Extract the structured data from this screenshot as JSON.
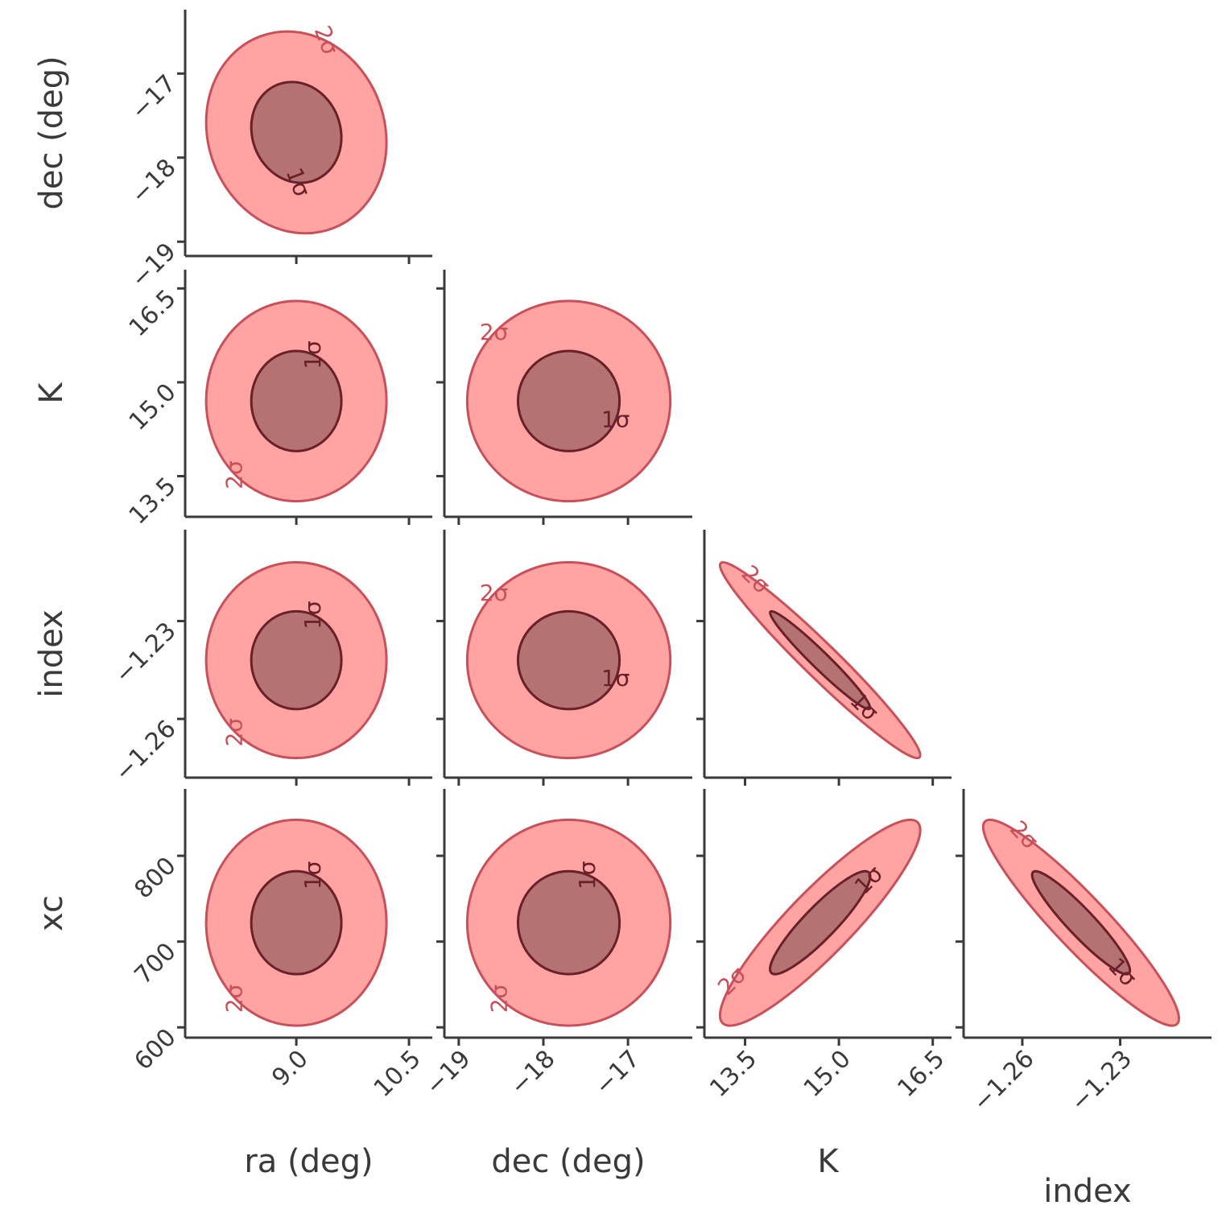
{
  "chart_data": {
    "type": "corner",
    "parameters": [
      {
        "label": "ra (deg)",
        "lim": [
          7.52,
          10.81
        ],
        "ticks": [
          {
            "value": 9,
            "label": "9.0"
          },
          10.5
        ],
        "center": 9.0,
        "std": 0.6
      },
      {
        "label": "dec (deg)",
        "lim": [
          -19.17,
          -16.24
        ],
        "ticks": [
          {
            "value": -19,
            "label": "−19"
          },
          {
            "value": -18,
            "label": "−18"
          },
          {
            "value": -17,
            "label": "−17"
          }
        ],
        "center": -17.7,
        "std": 0.6
      },
      {
        "label": "K",
        "lim": [
          12.85,
          16.8
        ],
        "ticks": [
          13.5,
          {
            "value": 15,
            "label": "15.0"
          },
          16.5
        ],
        "center": 14.7,
        "std": 0.8
      },
      {
        "label": "index",
        "lim": [
          -1.278,
          -1.202
        ],
        "ticks": [
          {
            "value": -1.26,
            "label": "−1.26"
          },
          {
            "value": -1.23,
            "label": "−1.23"
          }
        ],
        "center": -1.242,
        "std": 0.015
      },
      {
        "label": "xc",
        "lim": [
          588,
          878
        ],
        "ticks": [
          600,
          700,
          800
        ],
        "center": 722,
        "std": 60
      }
    ],
    "correlations": [
      [
        -0.1
      ],
      [
        0,
        0
      ],
      [
        0,
        0,
        -0.97
      ],
      [
        0,
        0,
        0.9,
        -0.93
      ]
    ],
    "levels": [
      {
        "label": "2σ",
        "sigma": 2,
        "color": "#ff9e9e",
        "edgecolor": "#c8505a"
      },
      {
        "label": "1σ",
        "sigma": 1,
        "color": "#b07070",
        "edgecolor": "#6a2028"
      }
    ]
  }
}
